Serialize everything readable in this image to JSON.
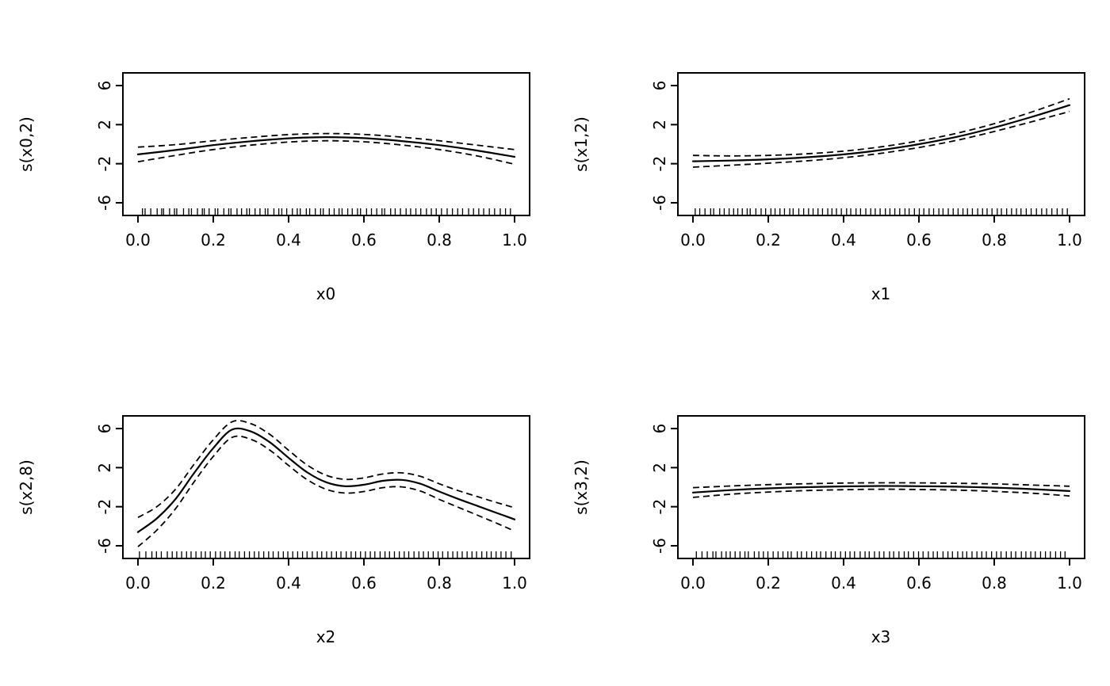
{
  "figure": {
    "background": "#ffffff",
    "foreground": "#000000",
    "description": "2x2 grid of GAM smooth-term plots with solid fit lines, dashed confidence bands and rug marks"
  },
  "chart_data": [
    {
      "type": "line",
      "xlabel": "x0",
      "ylabel": "s(x0,2)",
      "xlim": [
        -0.04,
        1.04
      ],
      "ylim": [
        -7.3,
        7.3
      ],
      "grid": false,
      "legend": false,
      "x_ticks": {
        "values": [
          0,
          0.2,
          0.4,
          0.6,
          0.8,
          1
        ],
        "labels": [
          "0.0",
          "0.2",
          "0.4",
          "0.6",
          "0.8",
          "1.0"
        ]
      },
      "y_ticks": {
        "values": [
          -6,
          -2,
          2,
          6
        ],
        "labels": [
          "-6",
          "-2",
          "2",
          "6"
        ]
      },
      "x": [
        0,
        0.1,
        0.2,
        0.3,
        0.4,
        0.5,
        0.6,
        0.7,
        0.8,
        0.9,
        1
      ],
      "fit": [
        -1.05,
        -0.6,
        -0.1,
        0.3,
        0.6,
        0.72,
        0.62,
        0.32,
        -0.1,
        -0.65,
        -1.3
      ],
      "se": [
        0.75,
        0.55,
        0.45,
        0.4,
        0.38,
        0.37,
        0.38,
        0.4,
        0.45,
        0.55,
        0.75
      ],
      "bands": "fit plus/minus se, dashed",
      "rug": [
        0.012,
        0.019,
        0.034,
        0.051,
        0.063,
        0.068,
        0.084,
        0.097,
        0.103,
        0.121,
        0.135,
        0.142,
        0.158,
        0.171,
        0.176,
        0.189,
        0.205,
        0.212,
        0.228,
        0.241,
        0.247,
        0.263,
        0.275,
        0.289,
        0.296,
        0.311,
        0.324,
        0.338,
        0.345,
        0.361,
        0.374,
        0.382,
        0.395,
        0.41,
        0.423,
        0.431,
        0.447,
        0.456,
        0.471,
        0.485,
        0.492,
        0.508,
        0.521,
        0.534,
        0.542,
        0.557,
        0.569,
        0.583,
        0.591,
        0.607,
        0.62,
        0.634,
        0.648,
        0.655,
        0.671,
        0.683,
        0.697,
        0.712,
        0.724,
        0.738,
        0.751,
        0.766,
        0.779,
        0.792,
        0.806,
        0.821,
        0.835,
        0.849,
        0.862,
        0.878,
        0.891,
        0.905,
        0.918,
        0.933,
        0.947,
        0.962,
        0.976,
        0.989
      ]
    },
    {
      "type": "line",
      "xlabel": "x1",
      "ylabel": "s(x1,2)",
      "xlim": [
        -0.04,
        1.04
      ],
      "ylim": [
        -7.3,
        7.3
      ],
      "grid": false,
      "legend": false,
      "x_ticks": {
        "values": [
          0,
          0.2,
          0.4,
          0.6,
          0.8,
          1
        ],
        "labels": [
          "0.0",
          "0.2",
          "0.4",
          "0.6",
          "0.8",
          "1.0"
        ]
      },
      "y_ticks": {
        "values": [
          -6,
          -2,
          2,
          6
        ],
        "labels": [
          "-6",
          "-2",
          "2",
          "6"
        ]
      },
      "x": [
        0,
        0.1,
        0.2,
        0.3,
        0.4,
        0.5,
        0.6,
        0.7,
        0.8,
        0.9,
        1
      ],
      "fit": [
        -1.75,
        -1.68,
        -1.55,
        -1.35,
        -1.05,
        -0.6,
        0.0,
        0.75,
        1.7,
        2.8,
        4.0
      ],
      "se": [
        0.6,
        0.48,
        0.4,
        0.36,
        0.34,
        0.33,
        0.34,
        0.36,
        0.4,
        0.5,
        0.65
      ],
      "bands": "fit plus/minus se, dashed",
      "rug": [
        0.006,
        0.018,
        0.032,
        0.047,
        0.055,
        0.071,
        0.083,
        0.096,
        0.108,
        0.119,
        0.131,
        0.144,
        0.152,
        0.167,
        0.181,
        0.193,
        0.207,
        0.218,
        0.231,
        0.243,
        0.257,
        0.266,
        0.281,
        0.294,
        0.307,
        0.319,
        0.332,
        0.344,
        0.358,
        0.369,
        0.381,
        0.394,
        0.408,
        0.419,
        0.433,
        0.445,
        0.459,
        0.472,
        0.484,
        0.497,
        0.511,
        0.523,
        0.536,
        0.549,
        0.563,
        0.574,
        0.588,
        0.601,
        0.613,
        0.627,
        0.639,
        0.653,
        0.664,
        0.678,
        0.691,
        0.704,
        0.717,
        0.729,
        0.742,
        0.756,
        0.769,
        0.781,
        0.794,
        0.808,
        0.819,
        0.833,
        0.846,
        0.859,
        0.871,
        0.885,
        0.898,
        0.912,
        0.926,
        0.939,
        0.953,
        0.967,
        0.981,
        0.994
      ]
    },
    {
      "type": "line",
      "xlabel": "x2",
      "ylabel": "s(x2,8)",
      "xlim": [
        -0.04,
        1.04
      ],
      "ylim": [
        -7.3,
        7.3
      ],
      "grid": false,
      "legend": false,
      "x_ticks": {
        "values": [
          0,
          0.2,
          0.4,
          0.6,
          0.8,
          1
        ],
        "labels": [
          "0.0",
          "0.2",
          "0.4",
          "0.6",
          "0.8",
          "1.0"
        ]
      },
      "y_ticks": {
        "values": [
          -6,
          -2,
          2,
          6
        ],
        "labels": [
          "-6",
          "-2",
          "2",
          "6"
        ]
      },
      "x": [
        0,
        0.05,
        0.1,
        0.15,
        0.2,
        0.25,
        0.3,
        0.35,
        0.4,
        0.45,
        0.5,
        0.55,
        0.6,
        0.65,
        0.7,
        0.75,
        0.8,
        0.85,
        0.9,
        0.95,
        1
      ],
      "fit": [
        -4.6,
        -3.2,
        -1.2,
        1.5,
        4.0,
        5.9,
        5.7,
        4.6,
        3.0,
        1.5,
        0.5,
        0.1,
        0.25,
        0.65,
        0.75,
        0.35,
        -0.45,
        -1.2,
        -1.9,
        -2.6,
        -3.3
      ],
      "se": [
        1.5,
        1.2,
        1.0,
        0.9,
        0.85,
        0.8,
        0.8,
        0.8,
        0.78,
        0.75,
        0.72,
        0.7,
        0.7,
        0.7,
        0.72,
        0.75,
        0.8,
        0.85,
        0.95,
        1.05,
        1.2
      ],
      "bands": "fit plus/minus se, dashed",
      "rug": [
        0.004,
        0.021,
        0.037,
        0.049,
        0.062,
        0.078,
        0.091,
        0.103,
        0.116,
        0.129,
        0.141,
        0.154,
        0.168,
        0.179,
        0.192,
        0.206,
        0.219,
        0.231,
        0.244,
        0.258,
        0.269,
        0.283,
        0.296,
        0.309,
        0.321,
        0.334,
        0.347,
        0.359,
        0.373,
        0.386,
        0.398,
        0.411,
        0.424,
        0.437,
        0.449,
        0.463,
        0.476,
        0.488,
        0.501,
        0.514,
        0.527,
        0.539,
        0.553,
        0.566,
        0.578,
        0.591,
        0.604,
        0.617,
        0.629,
        0.643,
        0.656,
        0.668,
        0.681,
        0.694,
        0.707,
        0.719,
        0.733,
        0.746,
        0.758,
        0.771,
        0.784,
        0.797,
        0.809,
        0.823,
        0.836,
        0.848,
        0.861,
        0.874,
        0.887,
        0.899,
        0.913,
        0.926,
        0.938,
        0.951,
        0.964,
        0.977,
        0.991
      ]
    },
    {
      "type": "line",
      "xlabel": "x3",
      "ylabel": "s(x3,2)",
      "xlim": [
        -0.04,
        1.04
      ],
      "ylim": [
        -7.3,
        7.3
      ],
      "grid": false,
      "legend": false,
      "x_ticks": {
        "values": [
          0,
          0.2,
          0.4,
          0.6,
          0.8,
          1
        ],
        "labels": [
          "0.0",
          "0.2",
          "0.4",
          "0.6",
          "0.8",
          "1.0"
        ]
      },
      "y_ticks": {
        "values": [
          -6,
          -2,
          2,
          6
        ],
        "labels": [
          "-6",
          "-2",
          "2",
          "6"
        ]
      },
      "x": [
        0,
        0.1,
        0.2,
        0.3,
        0.4,
        0.5,
        0.6,
        0.7,
        0.8,
        0.9,
        1
      ],
      "fit": [
        -0.55,
        -0.3,
        -0.12,
        0.0,
        0.08,
        0.12,
        0.1,
        0.05,
        -0.05,
        -0.2,
        -0.4
      ],
      "se": [
        0.5,
        0.42,
        0.38,
        0.35,
        0.34,
        0.33,
        0.34,
        0.35,
        0.38,
        0.42,
        0.5
      ],
      "bands": "fit plus/minus se, dashed",
      "rug": [
        0.009,
        0.024,
        0.038,
        0.053,
        0.061,
        0.076,
        0.088,
        0.099,
        0.112,
        0.125,
        0.138,
        0.147,
        0.163,
        0.175,
        0.187,
        0.199,
        0.213,
        0.226,
        0.239,
        0.252,
        0.261,
        0.277,
        0.288,
        0.302,
        0.315,
        0.328,
        0.339,
        0.353,
        0.367,
        0.378,
        0.392,
        0.405,
        0.417,
        0.429,
        0.444,
        0.457,
        0.468,
        0.482,
        0.495,
        0.507,
        0.522,
        0.533,
        0.547,
        0.561,
        0.572,
        0.586,
        0.599,
        0.611,
        0.625,
        0.638,
        0.649,
        0.664,
        0.677,
        0.689,
        0.703,
        0.716,
        0.727,
        0.741,
        0.754,
        0.767,
        0.779,
        0.793,
        0.806,
        0.818,
        0.832,
        0.845,
        0.857,
        0.872,
        0.884,
        0.897,
        0.909,
        0.923,
        0.936,
        0.949,
        0.963,
        0.976,
        0.988
      ]
    }
  ]
}
